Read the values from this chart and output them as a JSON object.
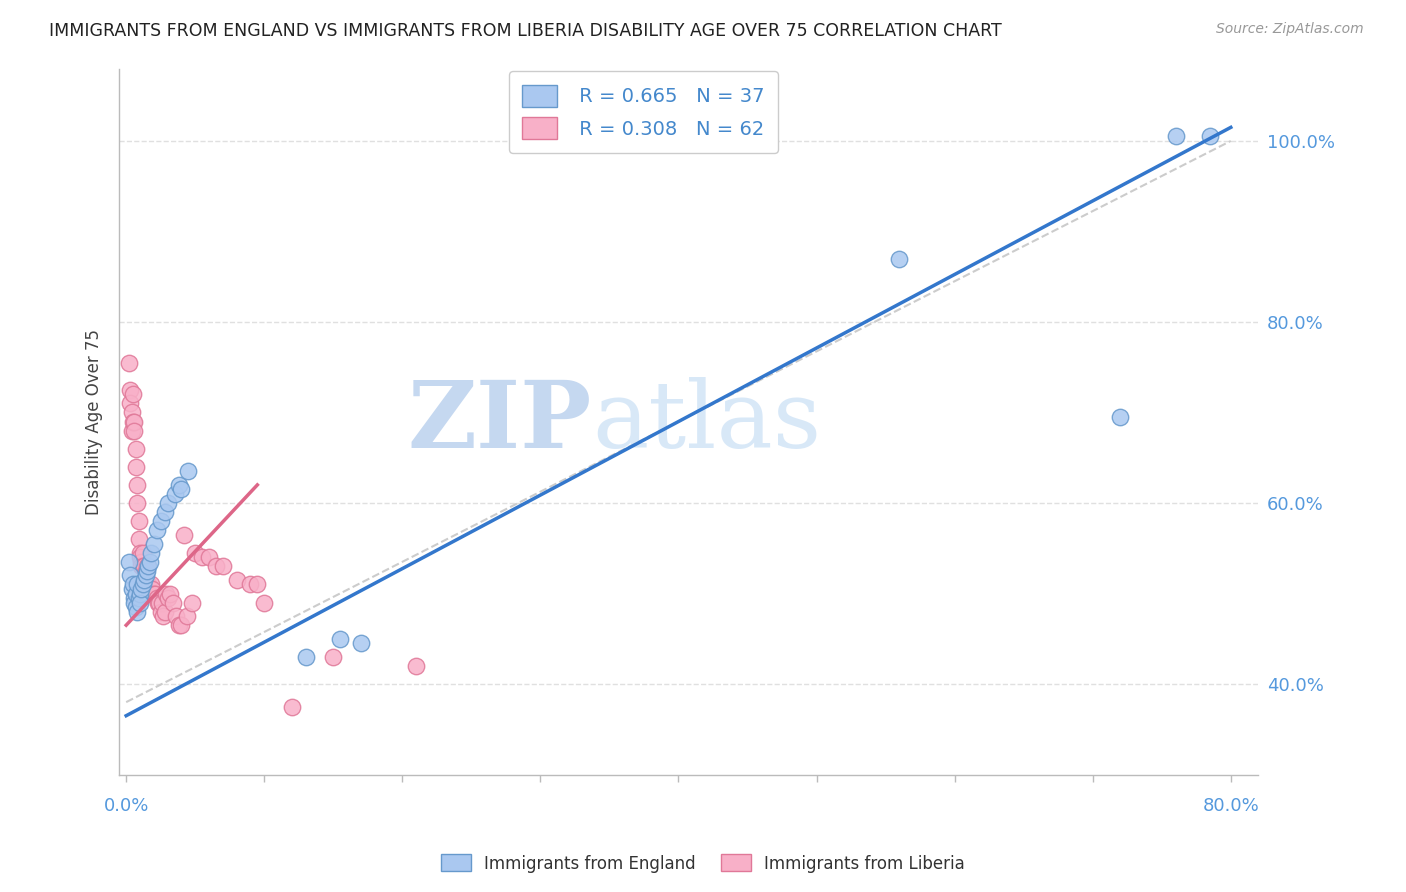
{
  "title": "IMMIGRANTS FROM ENGLAND VS IMMIGRANTS FROM LIBERIA DISABILITY AGE OVER 75 CORRELATION CHART",
  "source": "Source: ZipAtlas.com",
  "ylabel": "Disability Age Over 75",
  "ytick_labels": [
    "100.0%",
    "80.0%",
    "60.0%",
    "40.0%"
  ],
  "ytick_values": [
    1.0,
    0.8,
    0.6,
    0.4
  ],
  "xlim": [
    -0.005,
    0.82
  ],
  "ylim": [
    0.3,
    1.08
  ],
  "watermark_zip": "ZIP",
  "watermark_atlas": "atlas",
  "legend_england_R": "R = 0.665",
  "legend_england_N": "N = 37",
  "legend_liberia_R": "R = 0.308",
  "legend_liberia_N": "N = 62",
  "england_color": "#aac8f0",
  "england_edge": "#6699cc",
  "liberia_color": "#f8b0c8",
  "liberia_edge": "#e07898",
  "england_line_color": "#3377cc",
  "liberia_line_color": "#dd6688",
  "ref_line_color": "#cccccc",
  "england_line_x": [
    0.0,
    0.8
  ],
  "england_line_y": [
    0.365,
    1.015
  ],
  "liberia_line_x": [
    0.0,
    0.095
  ],
  "liberia_line_y": [
    0.465,
    0.62
  ],
  "ref_line_x": [
    0.0,
    0.8
  ],
  "ref_line_y": [
    0.38,
    1.0
  ],
  "england_scatter_x": [
    0.002,
    0.003,
    0.004,
    0.005,
    0.006,
    0.006,
    0.007,
    0.007,
    0.008,
    0.008,
    0.009,
    0.01,
    0.01,
    0.011,
    0.012,
    0.013,
    0.014,
    0.015,
    0.016,
    0.017,
    0.018,
    0.02,
    0.022,
    0.025,
    0.028,
    0.03,
    0.035,
    0.038,
    0.04,
    0.045,
    0.13,
    0.155,
    0.17,
    0.56,
    0.72,
    0.76,
    0.785
  ],
  "england_scatter_y": [
    0.535,
    0.52,
    0.505,
    0.51,
    0.495,
    0.49,
    0.5,
    0.485,
    0.51,
    0.48,
    0.495,
    0.5,
    0.49,
    0.505,
    0.51,
    0.515,
    0.52,
    0.525,
    0.53,
    0.535,
    0.545,
    0.555,
    0.57,
    0.58,
    0.59,
    0.6,
    0.61,
    0.62,
    0.615,
    0.635,
    0.43,
    0.45,
    0.445,
    0.87,
    0.695,
    1.005,
    1.005
  ],
  "liberia_scatter_x": [
    0.002,
    0.003,
    0.003,
    0.004,
    0.004,
    0.005,
    0.005,
    0.006,
    0.006,
    0.007,
    0.007,
    0.008,
    0.008,
    0.009,
    0.009,
    0.01,
    0.01,
    0.011,
    0.011,
    0.012,
    0.012,
    0.013,
    0.013,
    0.014,
    0.014,
    0.015,
    0.015,
    0.016,
    0.017,
    0.018,
    0.019,
    0.02,
    0.021,
    0.022,
    0.023,
    0.024,
    0.025,
    0.026,
    0.027,
    0.028,
    0.029,
    0.03,
    0.032,
    0.034,
    0.036,
    0.038,
    0.04,
    0.042,
    0.044,
    0.048,
    0.05,
    0.055,
    0.06,
    0.065,
    0.07,
    0.08,
    0.09,
    0.095,
    0.1,
    0.12,
    0.15,
    0.21
  ],
  "liberia_scatter_y": [
    0.755,
    0.725,
    0.71,
    0.7,
    0.68,
    0.72,
    0.69,
    0.69,
    0.68,
    0.66,
    0.64,
    0.62,
    0.6,
    0.58,
    0.56,
    0.545,
    0.54,
    0.535,
    0.53,
    0.545,
    0.53,
    0.53,
    0.51,
    0.525,
    0.51,
    0.53,
    0.505,
    0.51,
    0.5,
    0.51,
    0.505,
    0.5,
    0.5,
    0.495,
    0.49,
    0.49,
    0.48,
    0.49,
    0.475,
    0.48,
    0.5,
    0.495,
    0.5,
    0.49,
    0.475,
    0.465,
    0.465,
    0.565,
    0.475,
    0.49,
    0.545,
    0.54,
    0.54,
    0.53,
    0.53,
    0.515,
    0.51,
    0.51,
    0.49,
    0.375,
    0.43,
    0.42
  ],
  "background_color": "#ffffff",
  "grid_color": "#e0e0e0",
  "ytick_color": "#5599dd",
  "xtick_color": "#5599dd"
}
